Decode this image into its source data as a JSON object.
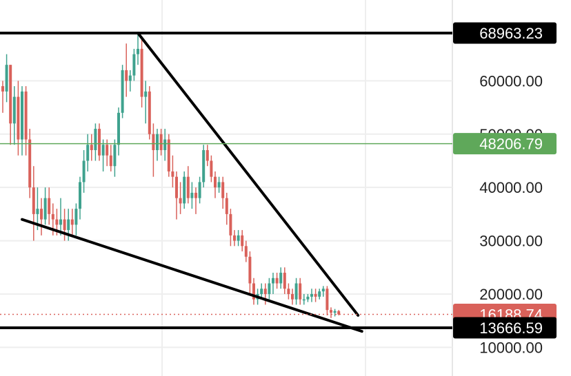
{
  "chart_data": {
    "type": "candlestick",
    "title": "",
    "xlabel": "",
    "ylabel": "",
    "ylim": [
      10000,
      70500
    ],
    "y_ticks": [
      "60000.00",
      "50000.00",
      "40000.00",
      "30000.00",
      "20000.00",
      "10000.00"
    ],
    "grid": true,
    "colors": {
      "up": "#3fa28e",
      "down": "#d9615a",
      "background": "#ffffff",
      "grid": "#eeeeee"
    },
    "candles": [
      [
        59000,
        60000,
        54000,
        58000
      ],
      [
        58000,
        65000,
        56000,
        63000
      ],
      [
        63000,
        63000,
        48000,
        52000
      ],
      [
        52000,
        59000,
        48000,
        57000
      ],
      [
        57000,
        60000,
        46000,
        49000
      ],
      [
        49000,
        59000,
        46000,
        58000
      ],
      [
        58000,
        59000,
        46000,
        49000
      ],
      [
        49000,
        51000,
        38000,
        40000
      ],
      [
        40000,
        44000,
        30000,
        35000
      ],
      [
        35000,
        40000,
        32000,
        36000
      ],
      [
        36000,
        38000,
        31000,
        34000
      ],
      [
        34000,
        40000,
        33000,
        38000
      ],
      [
        38000,
        40000,
        33000,
        35000
      ],
      [
        35000,
        37000,
        31000,
        34000
      ],
      [
        34000,
        36000,
        31000,
        33000
      ],
      [
        33000,
        38000,
        31000,
        34000
      ],
      [
        34000,
        36000,
        30000,
        32000
      ],
      [
        32000,
        36000,
        30000,
        34000
      ],
      [
        34000,
        36000,
        31000,
        33000
      ],
      [
        33000,
        37000,
        31000,
        36000
      ],
      [
        36000,
        42000,
        34000,
        41000
      ],
      [
        41000,
        47000,
        39000,
        45000
      ],
      [
        45000,
        50000,
        43000,
        48000
      ],
      [
        48000,
        50000,
        45000,
        47000
      ],
      [
        47000,
        52000,
        45000,
        51000
      ],
      [
        51000,
        52000,
        45000,
        46000
      ],
      [
        46000,
        49000,
        43000,
        48000
      ],
      [
        48000,
        49000,
        44000,
        46000
      ],
      [
        46000,
        48000,
        43000,
        44000
      ],
      [
        44000,
        49000,
        42000,
        48000
      ],
      [
        48000,
        55000,
        46000,
        54000
      ],
      [
        54000,
        63000,
        53000,
        62000
      ],
      [
        62000,
        67000,
        57000,
        60000
      ],
      [
        60000,
        62000,
        58000,
        61000
      ],
      [
        61000,
        66000,
        60000,
        65000
      ],
      [
        65000,
        69000,
        63000,
        66000
      ],
      [
        66000,
        68000,
        55000,
        57000
      ],
      [
        57000,
        60000,
        52000,
        58000
      ],
      [
        58000,
        59000,
        49000,
        50000
      ],
      [
        50000,
        52000,
        42000,
        47000
      ],
      [
        47000,
        51000,
        45000,
        50000
      ],
      [
        50000,
        51000,
        46000,
        47000
      ],
      [
        47000,
        51000,
        45000,
        49000
      ],
      [
        49000,
        50000,
        42000,
        43000
      ],
      [
        43000,
        46000,
        40000,
        42000
      ],
      [
        42000,
        43000,
        34000,
        38000
      ],
      [
        38000,
        41000,
        35000,
        37000
      ],
      [
        37000,
        43000,
        36000,
        42000
      ],
      [
        42000,
        44000,
        37000,
        38000
      ],
      [
        38000,
        41000,
        36000,
        39000
      ],
      [
        39000,
        40000,
        35000,
        38000
      ],
      [
        38000,
        42000,
        37000,
        41000
      ],
      [
        41000,
        48000,
        40000,
        47000
      ],
      [
        47000,
        48000,
        44000,
        45000
      ],
      [
        45000,
        46000,
        41000,
        42000
      ],
      [
        42000,
        43000,
        38000,
        40000
      ],
      [
        40000,
        42000,
        39000,
        41000
      ],
      [
        41000,
        42000,
        36000,
        38000
      ],
      [
        38000,
        39000,
        33000,
        35000
      ],
      [
        35000,
        36000,
        29000,
        31000
      ],
      [
        31000,
        32000,
        29000,
        30000
      ],
      [
        30000,
        32000,
        29000,
        31000
      ],
      [
        31000,
        32000,
        28000,
        29000
      ],
      [
        29000,
        30000,
        26000,
        27000
      ],
      [
        27000,
        28000,
        20000,
        22000
      ],
      [
        22000,
        23000,
        18000,
        19000
      ],
      [
        19000,
        21000,
        18000,
        20000
      ],
      [
        20000,
        22000,
        19000,
        21000
      ],
      [
        21000,
        22000,
        18000,
        20000
      ],
      [
        20000,
        23000,
        19000,
        22000
      ],
      [
        22000,
        24000,
        20000,
        23000
      ],
      [
        23000,
        24000,
        21000,
        22000
      ],
      [
        22000,
        25000,
        21000,
        24000
      ],
      [
        24000,
        25000,
        20000,
        21000
      ],
      [
        21000,
        22000,
        19000,
        20000
      ],
      [
        20000,
        21000,
        18000,
        19000
      ],
      [
        19000,
        23000,
        18000,
        22000
      ],
      [
        22000,
        23000,
        18000,
        19000
      ],
      [
        19000,
        20000,
        18000,
        19000
      ],
      [
        19000,
        20000,
        18500,
        19500
      ],
      [
        19500,
        21000,
        18500,
        20000
      ],
      [
        20000,
        21000,
        18500,
        19500
      ],
      [
        19500,
        21000,
        19000,
        20500
      ],
      [
        20500,
        21500,
        19500,
        21000
      ],
      [
        21000,
        21500,
        16000,
        17000
      ],
      [
        17000,
        17500,
        15500,
        16500
      ],
      [
        16500,
        17200,
        15800,
        16800
      ],
      [
        16800,
        17000,
        16000,
        16188.74
      ]
    ],
    "horizontal_lines": [
      {
        "label": "68963.23",
        "value": 68963.23,
        "color": "#000000"
      },
      {
        "label": "48206.79",
        "value": 48206.79,
        "color": "#5fa85a"
      },
      {
        "label": "16188.74",
        "value": 16188.74,
        "color": "#d9615a"
      },
      {
        "label": "13666.59",
        "value": 13666.59,
        "color": "#000000"
      }
    ],
    "trendlines": [
      {
        "name": "upper-trendline",
        "from": [
          35,
          68963.23
        ],
        "to": [
          92,
          16000
        ],
        "color": "#000000"
      },
      {
        "name": "lower-trendline",
        "from": [
          5,
          34000
        ],
        "to": [
          93,
          13000
        ],
        "color": "#000000"
      }
    ]
  }
}
